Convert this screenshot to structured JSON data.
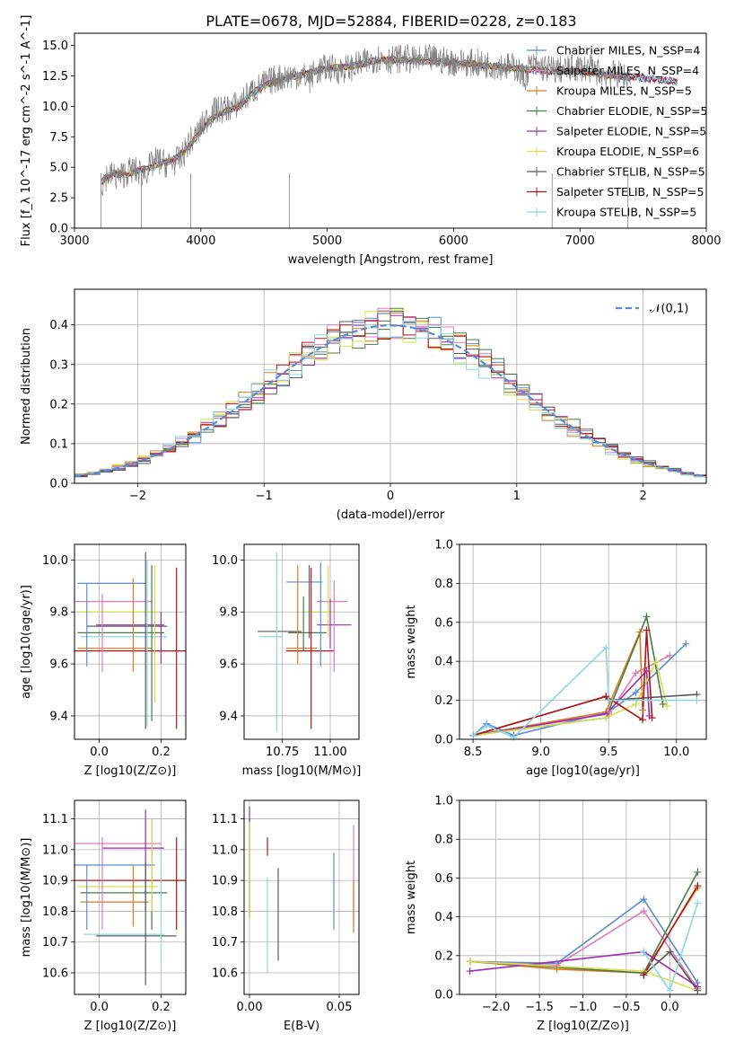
{
  "figure": {
    "title": "PLATE=0678, MJD=52884, FIBERID=0228, z=0.183"
  },
  "series": [
    {
      "name": "Chabrier MILES, N_SSP=4",
      "color": "#5b8bd4"
    },
    {
      "name": "Salpeter MILES, N_SSP=4",
      "color": "#e07ab9"
    },
    {
      "name": "Kroupa MILES, N_SSP=5",
      "color": "#de7a1f"
    },
    {
      "name": "Chabrier ELODIE, N_SSP=5",
      "color": "#4a7a4a"
    },
    {
      "name": "Salpeter ELODIE, N_SSP=5",
      "color": "#9b2db3"
    },
    {
      "name": "Kroupa ELODIE, N_SSP=6",
      "color": "#d4e14f"
    },
    {
      "name": "Chabrier STELIB, N_SSP=5",
      "color": "#5a5a5a"
    },
    {
      "name": "Salpeter STELIB, N_SSP=5",
      "color": "#b01515"
    },
    {
      "name": "Kroupa STELIB, N_SSP=5",
      "color": "#8ed6e3"
    }
  ],
  "chart_data": [
    {
      "id": "spectrum",
      "type": "line",
      "xlabel": "wavelength [Angstrom, rest frame]",
      "ylabel": "Flux [f_λ 10^-17 erg cm^-2 s^-1 A^-1]",
      "xlim": [
        3000,
        8000
      ],
      "ylim": [
        0,
        16
      ],
      "xticks": [
        "3000",
        "4000",
        "5000",
        "6000",
        "7000",
        "8000"
      ],
      "yticks": [
        "0.0",
        "2.5",
        "5.0",
        "7.5",
        "10.0",
        "12.5",
        "15.0"
      ],
      "grid": false,
      "legend": "right",
      "observed_color": "#808080",
      "observed": {
        "x": [
          3210,
          3260,
          3350,
          3450,
          3550,
          3650,
          3750,
          3850,
          3900,
          3950,
          4000,
          4050,
          4100,
          4200,
          4300,
          4400,
          4500,
          4600,
          4700,
          4800,
          4860,
          4900,
          5000,
          5100,
          5200,
          5300,
          5400,
          5500,
          5600,
          5700,
          5800,
          5900,
          6000,
          6100,
          6200,
          6300,
          6400,
          6500,
          6560,
          6600,
          6700,
          6800,
          6900,
          7000,
          7100,
          7200,
          7300,
          7400
        ],
        "y": [
          3.5,
          4.4,
          4.2,
          4.8,
          4.5,
          5.6,
          5.2,
          5.8,
          7.0,
          7.4,
          8.2,
          9.0,
          9.6,
          9.8,
          10.2,
          11.2,
          11.8,
          12.3,
          12.5,
          12.6,
          12.2,
          12.8,
          13.2,
          13.0,
          13.2,
          13.6,
          14.0,
          13.8,
          14.0,
          13.7,
          13.9,
          13.8,
          13.6,
          13.6,
          13.5,
          13.4,
          13.3,
          13.2,
          12.2,
          13.3,
          13.2,
          13.0,
          13.0,
          13.2,
          13.0,
          12.6,
          12.6,
          12.4
        ]
      },
      "model": {
        "x": [
          3210,
          3300,
          3400,
          3500,
          3600,
          3700,
          3800,
          3900,
          4000,
          4100,
          4200,
          4300,
          4400,
          4500,
          4600,
          4700,
          4800,
          4900,
          5000,
          5200,
          5400,
          5600,
          5800,
          6000,
          6200,
          6400,
          6600,
          6800,
          7000,
          7200,
          7400,
          7600,
          7800
        ],
        "y": [
          3.8,
          4.5,
          4.4,
          4.7,
          5.0,
          5.4,
          5.7,
          6.6,
          8.0,
          9.1,
          9.6,
          10.0,
          11.0,
          11.7,
          12.1,
          12.4,
          12.6,
          12.9,
          13.1,
          13.3,
          13.8,
          13.8,
          13.7,
          13.6,
          13.4,
          13.2,
          13.0,
          12.9,
          12.9,
          12.6,
          12.4,
          12.2,
          12.0
        ]
      },
      "edge_drops": [
        3210,
        3530,
        3920,
        4700,
        6780,
        7380
      ]
    },
    {
      "id": "residuals",
      "type": "line",
      "xlabel": "(data-model)/error",
      "ylabel": "Normed distribution",
      "xlim": [
        -2.5,
        2.5
      ],
      "ylim": [
        0,
        0.49
      ],
      "xticks": [
        "−2",
        "−1",
        "0",
        "1",
        "2"
      ],
      "yticks": [
        "0.0",
        "0.1",
        "0.2",
        "0.3",
        "0.4"
      ],
      "grid": true,
      "legend": "top-right",
      "legend_label": "𝒩(0,1)",
      "gaussian_color": "#5b8bd4",
      "gaussian": {
        "mean": 0,
        "sigma": 1
      },
      "hist_bin_width": 0.1
    },
    {
      "id": "Z-age",
      "type": "scatter",
      "xlabel": "Z [log10(Z/Z⊙)]",
      "ylabel": "age [log10(age/yr)]",
      "xlim": [
        -0.08,
        0.28
      ],
      "ylim": [
        9.31,
        10.06
      ],
      "xticks": [
        "0.0",
        "0.2"
      ],
      "yticks": [
        "9.4",
        "9.6",
        "9.8",
        "10.0"
      ],
      "grid": true,
      "points": [
        {
          "s": 0,
          "x": 0.04,
          "xe": 0.11,
          "y": 9.91,
          "ye": 0.08
        },
        {
          "s": 1,
          "x": 0.04,
          "xe": 0.13,
          "y": 9.84,
          "ye": 0.07
        },
        {
          "s": 2,
          "x": 0.05,
          "xe": 0.12,
          "y": 9.66,
          "ye": 0.06
        },
        {
          "s": 3,
          "x": 0.07,
          "xe": 0.14,
          "y": 9.72,
          "ye": 0.06
        },
        {
          "s": 4,
          "x": 0.1,
          "xe": 0.11,
          "y": 9.75,
          "ye": 0.05
        },
        {
          "s": 5,
          "x": 0.06,
          "xe": 0.13,
          "y": 9.8,
          "ye": 0.08
        },
        {
          "s": 6,
          "x": 0.09,
          "xe": 0.13,
          "y": 9.745,
          "ye": 0.1
        },
        {
          "s": 7,
          "x": 0.1,
          "xe": 0.18,
          "y": 9.65,
          "ye": 0.12
        },
        {
          "s": 8,
          "x": 0.08,
          "xe": 0.14,
          "y": 9.705,
          "ye": 0.08
        }
      ],
      "vlines": [
        {
          "s": 0,
          "x": -0.04,
          "y0": 9.59,
          "y1": 9.91
        },
        {
          "s": 1,
          "x": 0.01,
          "y0": 9.57,
          "y1": 9.87
        },
        {
          "s": 2,
          "x": 0.11,
          "y0": 9.57,
          "y1": 9.93
        },
        {
          "s": 3,
          "x": 0.17,
          "y0": 9.38,
          "y1": 9.98
        },
        {
          "s": 4,
          "x": 0.2,
          "y0": 9.6,
          "y1": 9.8
        },
        {
          "s": 5,
          "x": 0.18,
          "y0": 9.45,
          "y1": 9.98
        },
        {
          "s": 6,
          "x": 0.15,
          "y0": 9.35,
          "y1": 10.03
        },
        {
          "s": 7,
          "x": 0.25,
          "y0": 9.35,
          "y1": 9.97
        },
        {
          "s": 8,
          "x": 0.155,
          "y0": 9.36,
          "y1": 10.0
        }
      ]
    },
    {
      "id": "mass-age",
      "type": "scatter",
      "xlabel": "mass [log10(M/M⊙)]",
      "ylabel": "",
      "xlim": [
        10.55,
        11.15
      ],
      "ylim": [
        9.31,
        10.06
      ],
      "xticks": [
        "10.75",
        "11.00"
      ],
      "yticks": [
        "9.4",
        "9.6",
        "9.8",
        "10.0"
      ],
      "grid": true,
      "vlines": [
        {
          "s": 0,
          "x": 10.95,
          "y0": 9.59,
          "y1": 9.99
        },
        {
          "s": 1,
          "x": 11.02,
          "y0": 9.57,
          "y1": 9.92
        },
        {
          "s": 2,
          "x": 10.83,
          "y0": 9.6,
          "y1": 9.98
        },
        {
          "s": 3,
          "x": 10.86,
          "y0": 9.65,
          "y1": 9.86
        },
        {
          "s": 4,
          "x": 11.0,
          "y0": 9.66,
          "y1": 9.85
        },
        {
          "s": 5,
          "x": 10.99,
          "y0": 9.7,
          "y1": 9.98
        },
        {
          "s": 6,
          "x": 10.89,
          "y0": 9.7,
          "y1": 9.98
        },
        {
          "s": 7,
          "x": 10.9,
          "y0": 9.35,
          "y1": 9.97
        },
        {
          "s": 8,
          "x": 10.72,
          "y0": 9.34,
          "y1": 10.03
        }
      ],
      "hlines": [
        {
          "s": 0,
          "x0": 10.77,
          "x1": 10.96,
          "y": 9.915
        },
        {
          "s": 1,
          "x0": 10.93,
          "x1": 11.09,
          "y": 9.84
        },
        {
          "s": 2,
          "x0": 10.77,
          "x1": 10.93,
          "y": 9.66
        },
        {
          "s": 3,
          "x0": 10.78,
          "x1": 10.98,
          "y": 9.72
        },
        {
          "s": 4,
          "x0": 10.93,
          "x1": 11.11,
          "y": 9.75
        },
        {
          "s": 5,
          "x0": 10.87,
          "x1": 11.02,
          "y": 9.8
        },
        {
          "s": 6,
          "x0": 10.62,
          "x1": 10.85,
          "y": 9.725
        },
        {
          "s": 7,
          "x0": 10.77,
          "x1": 11.02,
          "y": 9.65
        },
        {
          "s": 8,
          "x0": 10.63,
          "x1": 10.75,
          "y": 9.705
        }
      ]
    },
    {
      "id": "age-weight",
      "type": "line",
      "xlabel": "age [log10(age/yr)]",
      "ylabel": "mass weight",
      "xlim": [
        8.4,
        10.22
      ],
      "ylim": [
        0,
        1
      ],
      "xticks": [
        "8.5",
        "9.0",
        "9.5",
        "10.0"
      ],
      "yticks": [
        "0.0",
        "0.2",
        "0.4",
        "0.6",
        "0.8",
        "1.0"
      ],
      "grid": true,
      "lines": [
        {
          "s": 0,
          "x": [
            8.5,
            8.6,
            8.8,
            9.5,
            9.7,
            10.07
          ],
          "y": [
            0.02,
            0.08,
            0.02,
            0.14,
            0.24,
            0.49
          ]
        },
        {
          "s": 1,
          "x": [
            8.5,
            9.5,
            9.7,
            9.95
          ],
          "y": [
            0.02,
            0.13,
            0.34,
            0.43
          ]
        },
        {
          "s": 2,
          "x": [
            8.5,
            9.48,
            9.73,
            9.75
          ],
          "y": [
            0.02,
            0.14,
            0.55,
            0.15
          ]
        },
        {
          "s": 3,
          "x": [
            8.5,
            9.48,
            9.78,
            9.9
          ],
          "y": [
            0.02,
            0.11,
            0.63,
            0.18
          ]
        },
        {
          "s": 4,
          "x": [
            8.5,
            9.48,
            9.78,
            9.8
          ],
          "y": [
            0.02,
            0.13,
            0.35,
            0.12
          ]
        },
        {
          "s": 5,
          "x": [
            8.5,
            9.48,
            9.7,
            9.85,
            9.93
          ],
          "y": [
            0.02,
            0.11,
            0.18,
            0.4,
            0.17
          ]
        },
        {
          "s": 6,
          "x": [
            8.5,
            9.48,
            9.5,
            10.15
          ],
          "y": [
            0.02,
            0.22,
            0.2,
            0.23
          ]
        },
        {
          "s": 7,
          "x": [
            8.5,
            9.48,
            9.75,
            9.78,
            9.82
          ],
          "y": [
            0.02,
            0.22,
            0.1,
            0.56,
            0.11
          ]
        },
        {
          "s": 8,
          "x": [
            8.5,
            8.6,
            8.8,
            9.48,
            9.5,
            10.15
          ],
          "y": [
            0.02,
            0.07,
            0.01,
            0.47,
            0.2,
            0.2
          ]
        }
      ]
    },
    {
      "id": "Z-mass",
      "type": "scatter",
      "xlabel": "Z [log10(Z/Z⊙)]",
      "ylabel": "mass [log10(M/M⊙)]",
      "xlim": [
        -0.08,
        0.28
      ],
      "ylim": [
        10.53,
        11.16
      ],
      "xticks": [
        "0.0",
        "0.2"
      ],
      "yticks": [
        "10.6",
        "10.7",
        "10.8",
        "10.9",
        "11.0",
        "11.1"
      ],
      "grid": true,
      "points": [
        {
          "s": 0,
          "x": 0.05,
          "xe": 0.13,
          "y": 10.95,
          "ye": 0.1
        },
        {
          "s": 1,
          "x": 0.05,
          "xe": 0.15,
          "y": 11.02,
          "ye": 0.08
        },
        {
          "s": 2,
          "x": 0.05,
          "xe": 0.11,
          "y": 10.83,
          "ye": 0.06
        },
        {
          "s": 3,
          "x": 0.08,
          "xe": 0.14,
          "y": 10.86,
          "ye": 0.06
        },
        {
          "s": 4,
          "x": 0.11,
          "xe": 0.1,
          "y": 11.005,
          "ye": 0.07
        },
        {
          "s": 5,
          "x": 0.06,
          "xe": 0.13,
          "y": 10.88,
          "ye": 0.06
        },
        {
          "s": 6,
          "x": 0.12,
          "xe": 0.13,
          "y": 10.72,
          "ye": 0.07
        },
        {
          "s": 7,
          "x": 0.11,
          "xe": 0.19,
          "y": 10.9,
          "ye": 0.08
        },
        {
          "s": 8,
          "x": 0.08,
          "xe": 0.13,
          "y": 10.725,
          "ye": 0.07
        }
      ],
      "vlines": [
        {
          "s": 0,
          "x": -0.04,
          "y0": 10.74,
          "y1": 10.95
        },
        {
          "s": 1,
          "x": 0.01,
          "y0": 10.74,
          "y1": 11.04
        },
        {
          "s": 2,
          "x": 0.11,
          "y0": 10.75,
          "y1": 10.95
        },
        {
          "s": 3,
          "x": 0.17,
          "y0": 10.74,
          "y1": 11.1
        },
        {
          "s": 4,
          "x": 0.15,
          "y0": 10.8,
          "y1": 11.13
        },
        {
          "s": 5,
          "x": 0.17,
          "y0": 10.8,
          "y1": 11.1
        },
        {
          "s": 6,
          "x": 0.15,
          "y0": 10.56,
          "y1": 10.96
        },
        {
          "s": 7,
          "x": 0.25,
          "y0": 10.74,
          "y1": 11.04
        },
        {
          "s": 8,
          "x": 0.2,
          "y0": 10.63,
          "y1": 11.0
        }
      ]
    },
    {
      "id": "ebv-mass",
      "type": "scatter",
      "xlabel": "E(B-V)",
      "ylabel": "",
      "xlim": [
        -0.003,
        0.061
      ],
      "ylim": [
        10.53,
        11.16
      ],
      "xticks": [
        "0.00",
        "0.05"
      ],
      "yticks": [
        "10.6",
        "10.7",
        "10.8",
        "10.9",
        "11.0",
        "11.1"
      ],
      "grid": true,
      "vlines": [
        {
          "s": 0,
          "x": 0.047,
          "y0": 10.74,
          "y1": 10.99
        },
        {
          "s": 1,
          "x": 0.058,
          "y0": 10.75,
          "y1": 11.08
        },
        {
          "s": 2,
          "x": 0.058,
          "y0": 10.73,
          "y1": 10.9
        },
        {
          "s": 3,
          "x": 0.0,
          "y0": 10.78,
          "y1": 11.1
        },
        {
          "s": 4,
          "x": 0.0,
          "y0": 10.78,
          "y1": 11.14
        },
        {
          "s": 5,
          "x": 0.0,
          "y0": 10.78,
          "y1": 11.09
        },
        {
          "s": 6,
          "x": 0.016,
          "y0": 10.64,
          "y1": 10.94
        },
        {
          "s": 7,
          "x": 0.01,
          "y0": 10.98,
          "y1": 11.04
        },
        {
          "s": 8,
          "x": 0.01,
          "y0": 10.6,
          "y1": 10.91
        }
      ]
    },
    {
      "id": "Z-weight",
      "type": "line",
      "xlabel": "Z [log10(Z/Z⊙)]",
      "ylabel": "mass weight",
      "xlim": [
        -2.42,
        0.42
      ],
      "ylim": [
        0,
        1
      ],
      "xticks": [
        "−2.0",
        "−1.5",
        "−1.0",
        "−0.5",
        "0.0"
      ],
      "yticks": [
        "0.0",
        "0.2",
        "0.4",
        "0.6",
        "0.8",
        "1.0"
      ],
      "grid": true,
      "lines": [
        {
          "s": 0,
          "x": [
            -2.3,
            -1.3,
            -0.3,
            0.32
          ],
          "y": [
            0.17,
            0.16,
            0.49,
            0.06
          ]
        },
        {
          "s": 1,
          "x": [
            -2.3,
            -1.3,
            -0.3,
            0.32
          ],
          "y": [
            0.17,
            0.15,
            0.43,
            0.03
          ]
        },
        {
          "s": 2,
          "x": [
            -2.3,
            -1.3,
            -0.3,
            0.32
          ],
          "y": [
            0.17,
            0.13,
            0.11,
            0.55
          ]
        },
        {
          "s": 3,
          "x": [
            -2.3,
            -0.3,
            0.32
          ],
          "y": [
            0.17,
            0.11,
            0.63
          ]
        },
        {
          "s": 4,
          "x": [
            -2.3,
            -0.3,
            0.32
          ],
          "y": [
            0.12,
            0.22,
            0.04
          ]
        },
        {
          "s": 5,
          "x": [
            -2.3,
            -0.3,
            0.32
          ],
          "y": [
            0.17,
            0.12,
            0.02
          ]
        },
        {
          "s": 6,
          "x": [
            -0.3,
            0.0,
            0.32
          ],
          "y": [
            0.1,
            0.22,
            0.02
          ]
        },
        {
          "s": 7,
          "x": [
            -0.3,
            0.32
          ],
          "y": [
            0.1,
            0.56
          ]
        },
        {
          "s": 8,
          "x": [
            -0.3,
            0.0,
            0.32
          ],
          "y": [
            0.22,
            0.02,
            0.47
          ]
        }
      ]
    }
  ]
}
